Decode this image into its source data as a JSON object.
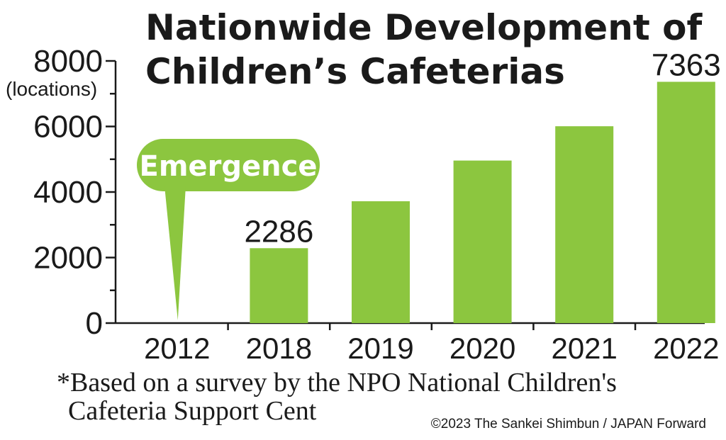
{
  "chart_data": {
    "type": "bar",
    "title_lines": [
      "Nationwide Development of",
      "Children’s Cafeterias"
    ],
    "ylabel": "(locations)",
    "ylim": [
      0,
      8000
    ],
    "yticks": [
      "0",
      "2000",
      "4000",
      "6000",
      "8000"
    ],
    "categories": [
      "2012",
      "2018",
      "2019",
      "2020",
      "2021",
      "2022"
    ],
    "values": [
      0,
      2286,
      3718,
      4960,
      6007,
      7363
    ],
    "data_labels": [
      {
        "category": "2018",
        "text": "2286"
      },
      {
        "category": "2022",
        "text": "7363"
      }
    ],
    "callout": {
      "category": "2012",
      "text": "Emergence"
    },
    "grid": false,
    "bar_color": "#8cc63f",
    "axis_color": "#1a1a1a"
  },
  "footnote_lines": [
    "*Based on a survey by the NPO National Children's",
    "Cafeteria  Support Cent"
  ],
  "copyright": "©2023 The Sankei Shimbun / JAPAN Forward"
}
